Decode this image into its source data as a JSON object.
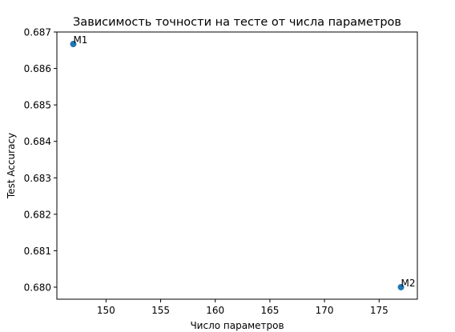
{
  "chart_data": {
    "type": "scatter",
    "title": "Зависимость точности на тесте от числа параметров",
    "xlabel": "Число параметров",
    "ylabel": "Test Accuracy",
    "xlim": [
      145.5,
      178.5
    ],
    "ylim": [
      0.67967,
      0.687
    ],
    "xticks": [
      150,
      155,
      160,
      165,
      170,
      175
    ],
    "xtick_labels": [
      "150",
      "155",
      "160",
      "165",
      "170",
      "175"
    ],
    "yticks": [
      0.68,
      0.681,
      0.682,
      0.683,
      0.684,
      0.685,
      0.686,
      0.687
    ],
    "ytick_labels": [
      "0.680",
      "0.681",
      "0.682",
      "0.683",
      "0.684",
      "0.685",
      "0.686",
      "0.687"
    ],
    "grid": false,
    "marker_color": "#1f77b4",
    "points": [
      {
        "x": 147,
        "y": 0.68667,
        "label": "M1"
      },
      {
        "x": 177,
        "y": 0.68,
        "label": "M2"
      }
    ]
  }
}
